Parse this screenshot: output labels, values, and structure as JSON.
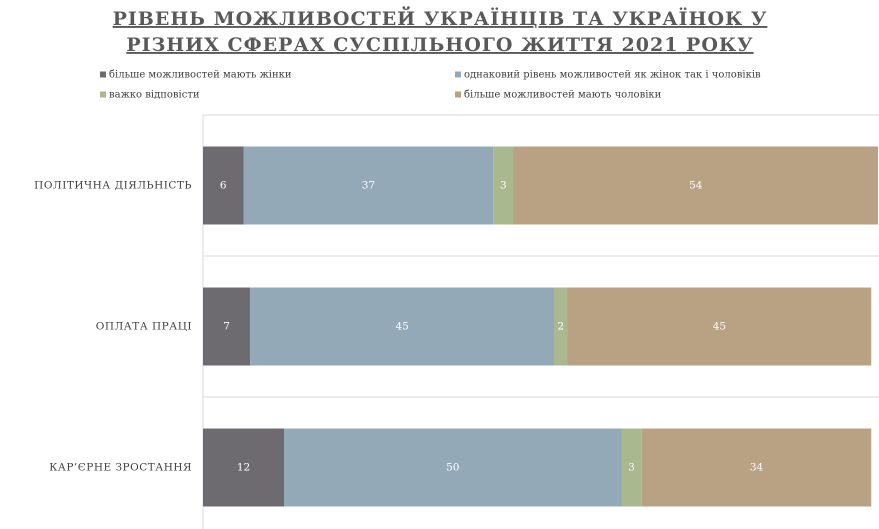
{
  "chart_data": {
    "type": "stacked_barh",
    "title": [
      "РІВЕНЬ МОЖЛИВОСТЕЙ УКРАЇНЦІВ ТА УКРАЇНОК У",
      "РІЗНИХ СФЕРАХ СУСПІЛЬНОГО ЖИТТЯ 2021 РОКУ"
    ],
    "categories": [
      "ПОЛІТИЧНА ДІЯЛЬНІСТЬ",
      "ОПЛАТА ПРАЦІ",
      "КАР’ЄРНЕ ЗРОСТАННЯ"
    ],
    "series": [
      {
        "name": "більше можливостей мають жінки",
        "color": "#6e6b70",
        "values": [
          6,
          7,
          12
        ]
      },
      {
        "name": "однаковий рівень можливостей як жінок так і чоловіків",
        "color": "#93a9b8",
        "values": [
          37,
          45,
          50
        ]
      },
      {
        "name": "важко відповісти",
        "color": "#a9b88f",
        "values": [
          3,
          2,
          3
        ]
      },
      {
        "name": "більше можливостей мають чоловіки",
        "color": "#b9a184",
        "values": [
          54,
          45,
          34
        ]
      }
    ],
    "legend": "top",
    "grid": true
  }
}
